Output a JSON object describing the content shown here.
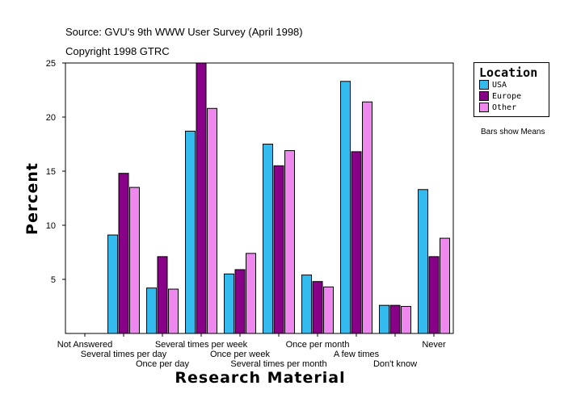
{
  "source_line": "Source: GVU's 9th WWW User Survey (April 1998)",
  "copyright_line": "Copyright 1998 GTRC",
  "note": "Bars show Means",
  "colors": {
    "USA": "#33bbee",
    "Europe": "#880088",
    "Other": "#ee88ee"
  },
  "chart_data": {
    "type": "bar",
    "title": "",
    "xlabel": "Research Material",
    "ylabel": "Percent",
    "ylim": [
      0,
      25
    ],
    "yticks": [
      5,
      10,
      15,
      20,
      25
    ],
    "legend_title": "Location",
    "legend_position": "top-right",
    "categories": [
      "Not Answered",
      "Several times per day",
      "Once per day",
      "Several times per week",
      "Once per week",
      "Several times per month",
      "Once per month",
      "A few times",
      "Don't know",
      "Never"
    ],
    "series": [
      {
        "name": "USA",
        "values": [
          0,
          9.1,
          4.2,
          18.7,
          5.5,
          17.5,
          5.4,
          23.3,
          2.6,
          13.3
        ]
      },
      {
        "name": "Europe",
        "values": [
          0,
          14.8,
          7.1,
          25.0,
          5.9,
          15.5,
          4.8,
          16.8,
          2.6,
          7.1
        ]
      },
      {
        "name": "Other",
        "values": [
          0,
          13.5,
          4.1,
          20.8,
          7.4,
          16.9,
          4.3,
          21.4,
          2.5,
          8.8
        ]
      }
    ]
  }
}
